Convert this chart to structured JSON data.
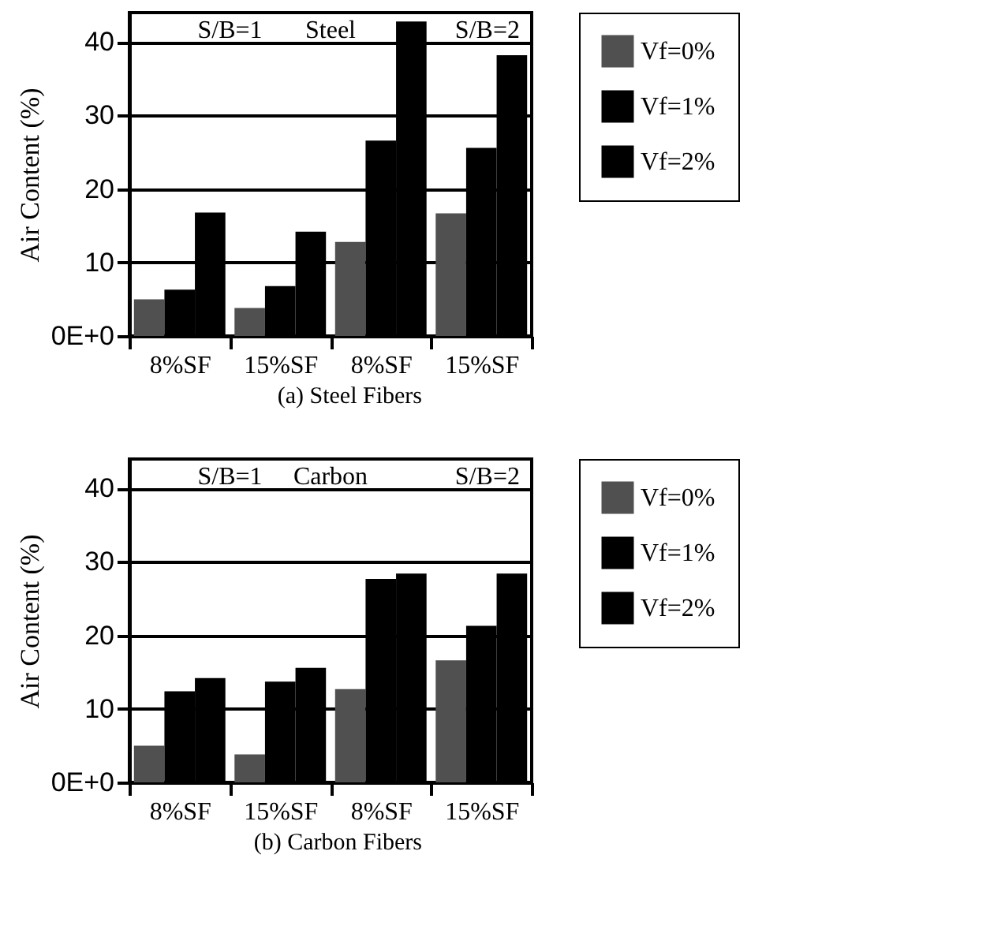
{
  "chart_data": [
    {
      "type": "bar",
      "xlabel": "(a) Steel Fibers",
      "ylabel": "Air Content (%)",
      "categories": [
        "8%SF",
        "15%SF",
        "8%SF",
        "15%SF"
      ],
      "series": [
        {
          "name": "Vf=0%",
          "color": "#505050",
          "values": [
            5.0,
            3.8,
            12.8,
            16.7
          ]
        },
        {
          "name": "Vf=1%",
          "color": "#000000",
          "values": [
            6.3,
            6.8,
            26.6,
            25.6
          ]
        },
        {
          "name": "Vf=2%",
          "color": "#000000",
          "values": [
            16.8,
            14.2,
            42.8,
            38.2
          ]
        }
      ],
      "ylim": [
        0,
        44
      ],
      "yticks": [
        {
          "value": 0,
          "label": "0E+0"
        },
        10,
        20,
        30,
        40
      ],
      "grid": "y",
      "legend": "right",
      "annotations": [
        "S/B=1",
        "Steel",
        "S/B=2"
      ]
    },
    {
      "type": "bar",
      "xlabel": "(b) Carbon Fibers",
      "ylabel": "Air Content (%)",
      "categories": [
        "8%SF",
        "15%SF",
        "8%SF",
        "15%SF"
      ],
      "series": [
        {
          "name": "Vf=0%",
          "color": "#505050",
          "values": [
            5.0,
            3.8,
            12.7,
            16.6
          ]
        },
        {
          "name": "Vf=1%",
          "color": "#000000",
          "values": [
            12.4,
            13.7,
            27.7,
            21.3
          ]
        },
        {
          "name": "Vf=2%",
          "color": "#000000",
          "values": [
            14.2,
            15.6,
            28.4,
            28.4
          ]
        }
      ],
      "ylim": [
        0,
        44
      ],
      "yticks": [
        {
          "value": 0,
          "label": "0E+0"
        },
        10,
        20,
        30,
        40
      ],
      "grid": "y",
      "legend": "right",
      "annotations": [
        "S/B=1",
        "Carbon",
        "S/B=2"
      ]
    }
  ]
}
